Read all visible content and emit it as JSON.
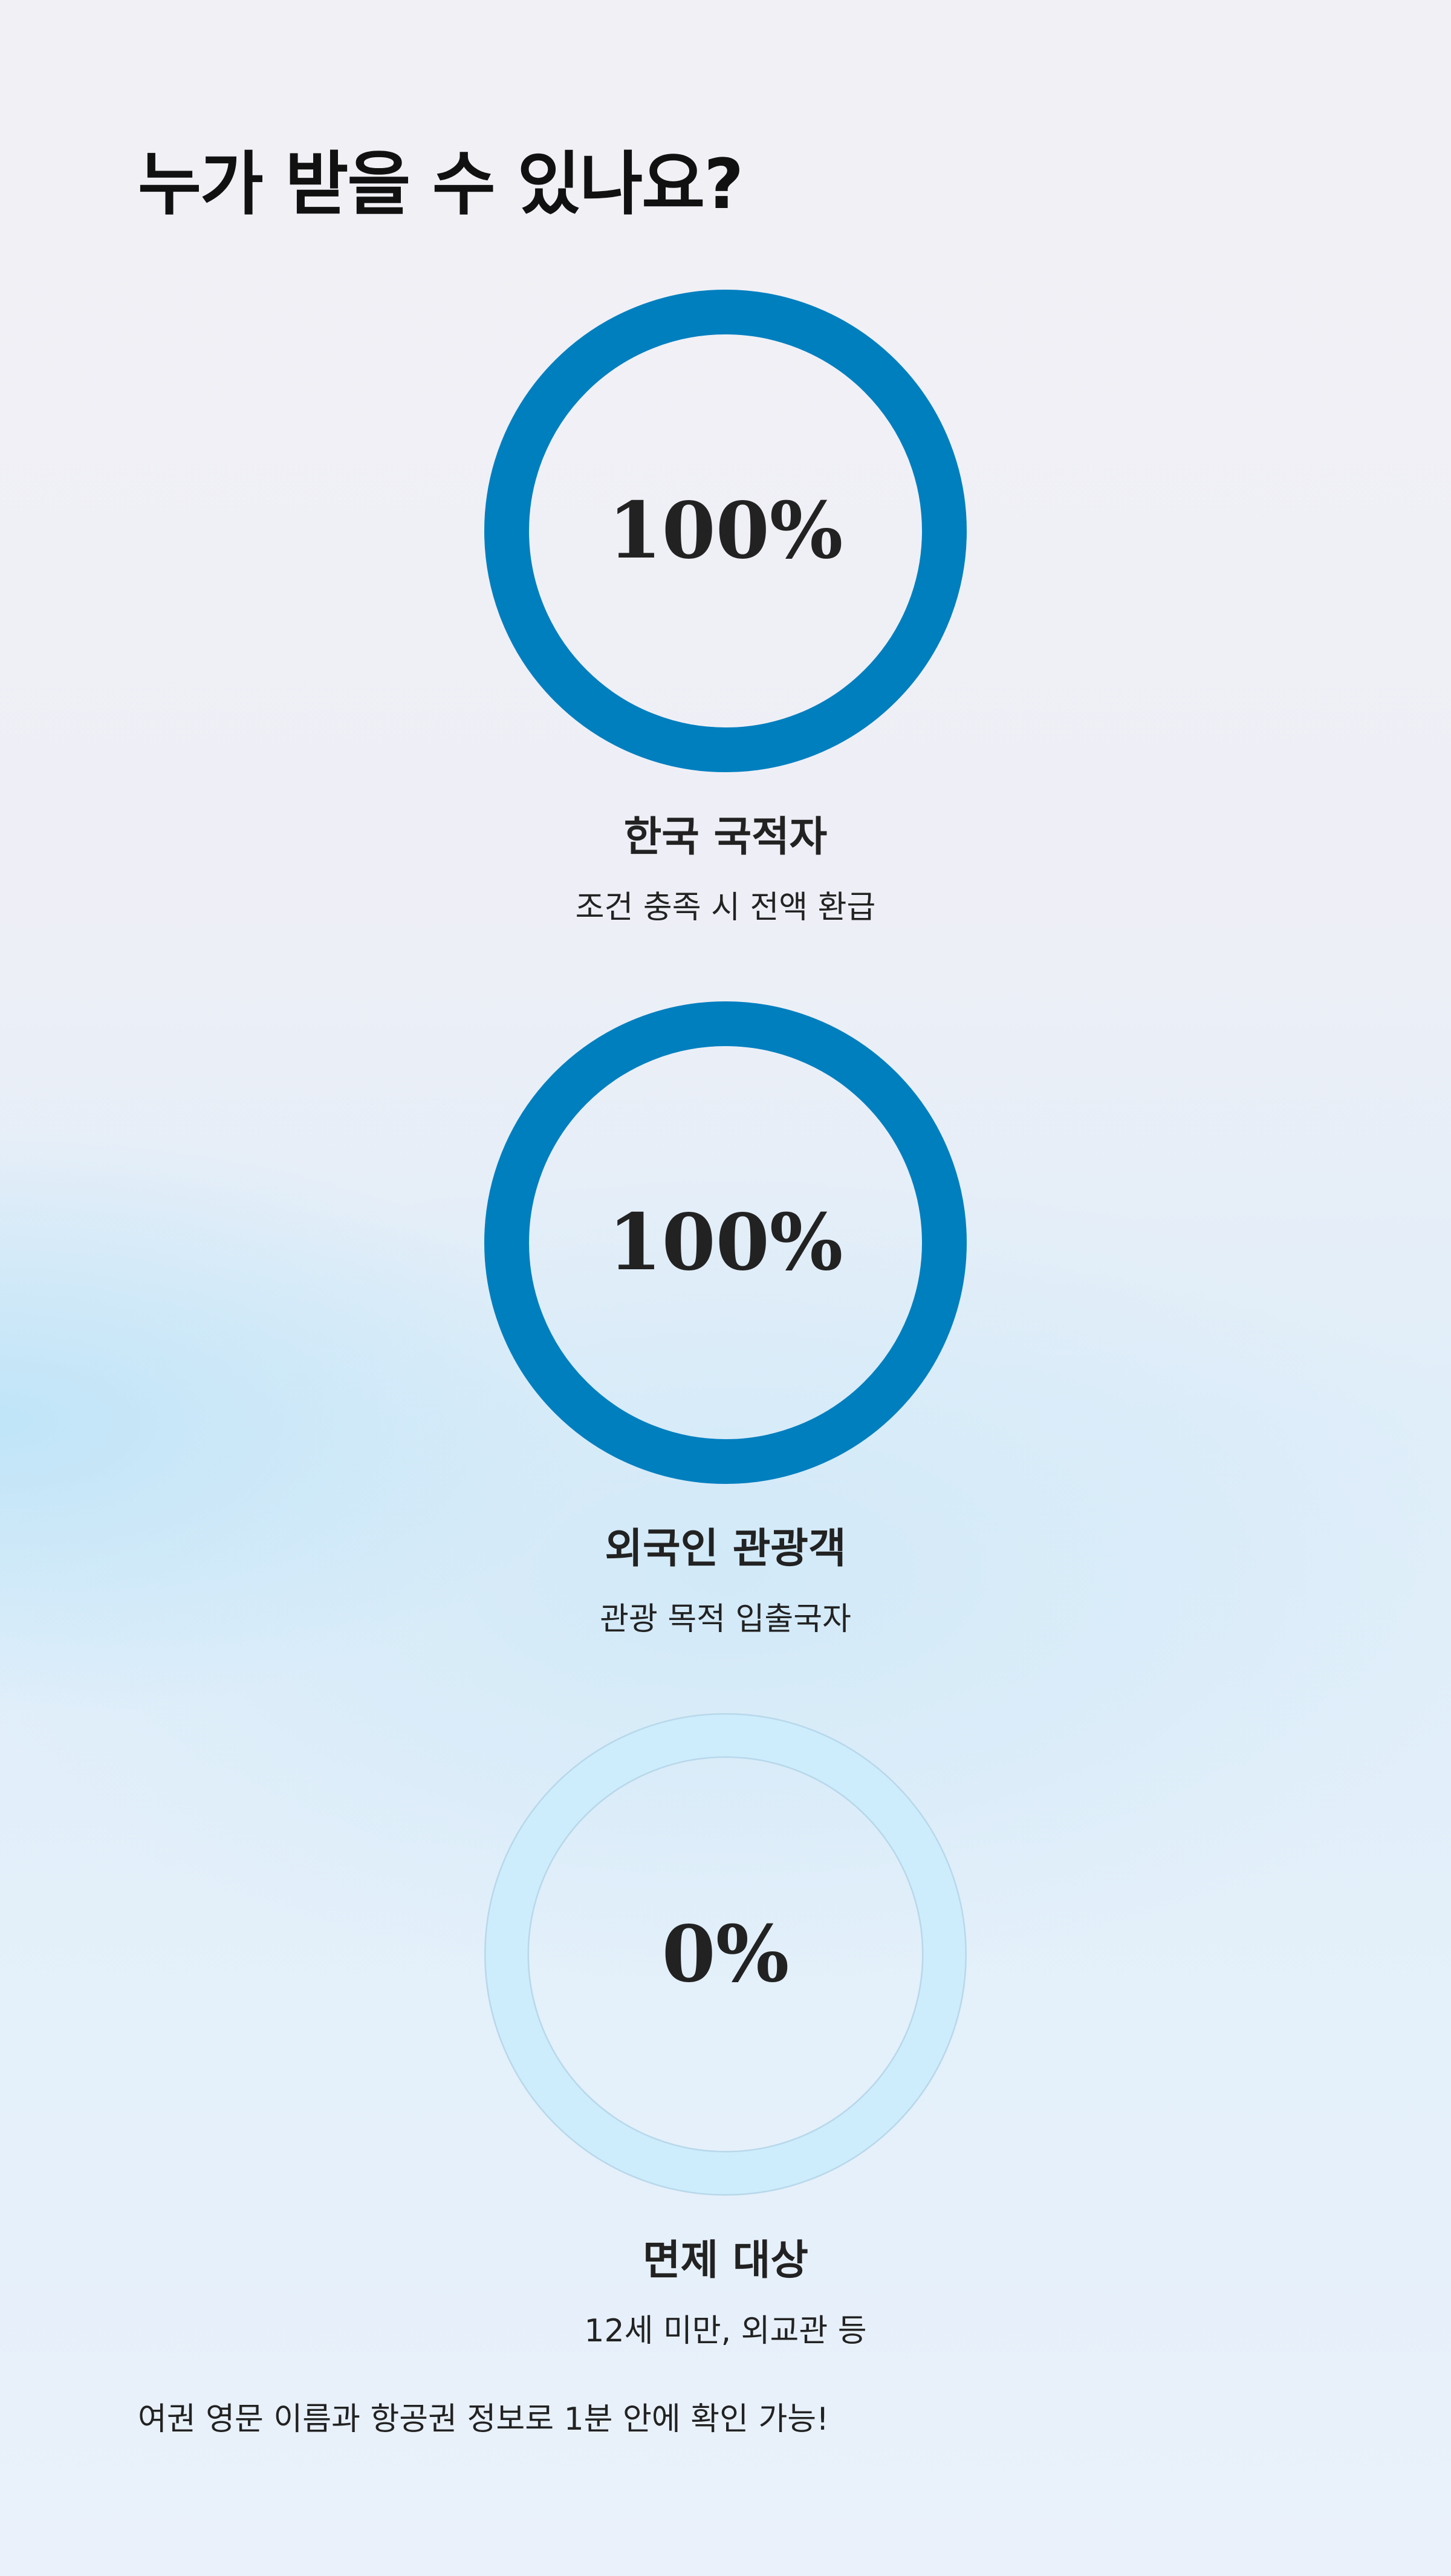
{
  "title": "누가 받을 수 있나요?",
  "colors": {
    "ring_filled": "#007fbf",
    "ring_empty": "#cdedfd",
    "ring_empty_border": "#b8d8ea"
  },
  "items": [
    {
      "percent_label": "100%",
      "percent": 100,
      "label": "한국 국적자",
      "description": "조건 충족 시 전액 환급"
    },
    {
      "percent_label": "100%",
      "percent": 100,
      "label": "외국인 관광객",
      "description": "관광 목적 입출국자"
    },
    {
      "percent_label": "0%",
      "percent": 0,
      "label": "면제 대상",
      "description": "12세 미만, 외교관 등"
    }
  ],
  "footer": "여권 영문 이름과 항공권 정보로 1분 안에 확인 가능!"
}
